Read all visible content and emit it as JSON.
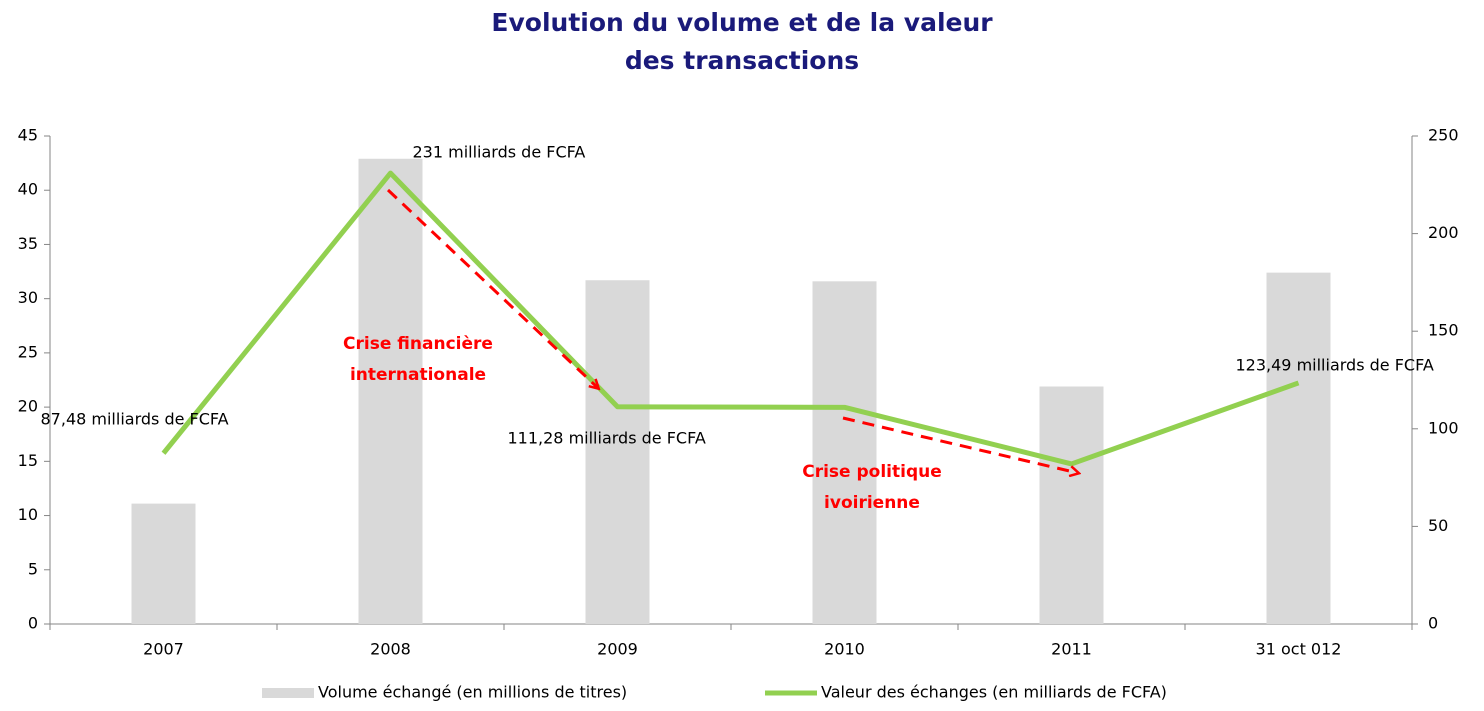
{
  "chart_data": {
    "type": "bar+line",
    "title": [
      "Evolution du volume et de la valeur",
      "des transactions"
    ],
    "categories": [
      "2007",
      "2008",
      "2009",
      "2010",
      "2011",
      "31 oct 012"
    ],
    "series": [
      {
        "name": "Volume échangé (en millions de titres)",
        "color": "#d9d9d9",
        "type": "bar",
        "values": [
          11.1,
          42.9,
          31.7,
          31.6,
          21.9,
          32.4
        ]
      },
      {
        "name": "Valeur des échanges (en milliards de FCFA)",
        "color": "#92d050",
        "type": "line",
        "axis": "y2",
        "values": [
          87.48,
          231,
          111.28,
          111,
          82,
          123.49
        ],
        "value_labels": [
          "87,48 milliards de FCFA",
          "231 milliards de FCFA",
          "111,28 milliards de FCFA",
          null,
          null,
          "123,49  milliards de FCFA"
        ]
      }
    ],
    "ylim": [
      0,
      45
    ],
    "yticks": [
      0,
      5,
      10,
      15,
      20,
      25,
      30,
      35,
      40,
      45
    ],
    "y2lim": [
      0,
      250
    ],
    "y2ticks": [
      0,
      50,
      100,
      150,
      200,
      250
    ],
    "annotations": [
      [
        "Crise financière",
        "internationale"
      ],
      [
        "Crise politique",
        "ivoirienne"
      ]
    ],
    "annotation_color": "#ff0000",
    "grid": false,
    "legend": "bottom"
  }
}
